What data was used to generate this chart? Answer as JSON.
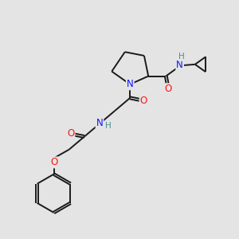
{
  "bg_color": "#e4e4e4",
  "bond_color": "#1a1a1a",
  "N_color": "#1414ff",
  "O_color": "#ff1414",
  "H_color": "#4a9090",
  "line_width": 1.4,
  "font_size": 8.5,
  "fig_size": [
    3.0,
    3.0
  ],
  "dpi": 100,
  "xlim": [
    0,
    10
  ],
  "ylim": [
    0,
    10
  ]
}
